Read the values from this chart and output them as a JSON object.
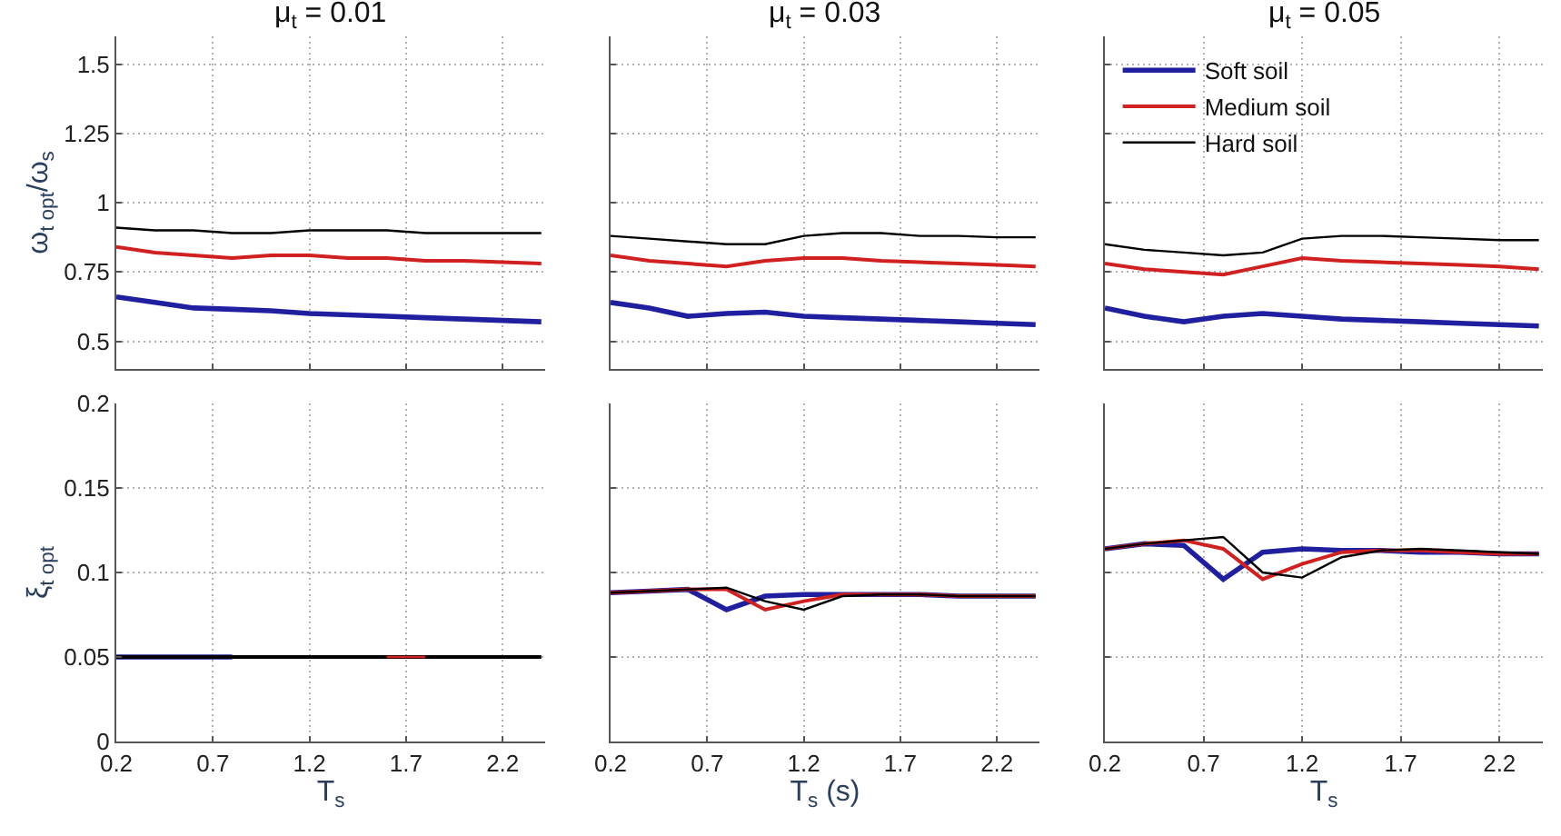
{
  "chart_data": [
    {
      "type": "line",
      "title": "μ$_{t}$ = 0.01",
      "ylabel": "ω$_{t opt}$/ω$_{s}$",
      "x": [
        0.2,
        0.4,
        0.6,
        0.8,
        1.0,
        1.2,
        1.4,
        1.6,
        1.8,
        2.0,
        2.2,
        2.4
      ],
      "xlim": [
        0.2,
        2.42
      ],
      "xticks": [
        0.2,
        0.7,
        1.2,
        1.7,
        2.2
      ],
      "ylim": [
        0.4,
        1.6
      ],
      "yticks": [
        0.5,
        0.75,
        1,
        1.25,
        1.5
      ],
      "tick_labels": "y",
      "grid": true,
      "legend": false,
      "series": [
        {
          "color": "#1f1fa0",
          "values": [
            0.66,
            0.64,
            0.62,
            0.615,
            0.61,
            0.6,
            0.595,
            0.59,
            0.585,
            0.58,
            0.575,
            0.57
          ]
        },
        {
          "color": "#d02020",
          "values": [
            0.84,
            0.82,
            0.81,
            0.8,
            0.81,
            0.81,
            0.8,
            0.8,
            0.79,
            0.79,
            0.785,
            0.78
          ]
        },
        {
          "color": "#000000",
          "values": [
            0.91,
            0.9,
            0.9,
            0.89,
            0.89,
            0.9,
            0.9,
            0.9,
            0.89,
            0.89,
            0.89,
            0.89
          ]
        }
      ]
    },
    {
      "type": "line",
      "title": "μ$_{t}$ = 0.03",
      "x": [
        0.2,
        0.4,
        0.6,
        0.8,
        1.0,
        1.2,
        1.4,
        1.6,
        1.8,
        2.0,
        2.2,
        2.4
      ],
      "xlim": [
        0.2,
        2.42
      ],
      "xticks": [
        0.2,
        0.7,
        1.2,
        1.7,
        2.2
      ],
      "ylim": [
        0.4,
        1.6
      ],
      "yticks": [
        0.5,
        0.75,
        1,
        1.25,
        1.5
      ],
      "tick_labels": false,
      "grid": true,
      "legend": false,
      "series": [
        {
          "color": "#1f1fa0",
          "values": [
            0.64,
            0.62,
            0.59,
            0.6,
            0.605,
            0.59,
            0.585,
            0.58,
            0.575,
            0.57,
            0.565,
            0.56
          ]
        },
        {
          "color": "#d02020",
          "values": [
            0.81,
            0.79,
            0.78,
            0.77,
            0.79,
            0.8,
            0.8,
            0.79,
            0.785,
            0.78,
            0.775,
            0.77
          ]
        },
        {
          "color": "#000000",
          "values": [
            0.88,
            0.87,
            0.86,
            0.85,
            0.85,
            0.88,
            0.89,
            0.89,
            0.88,
            0.88,
            0.875,
            0.875
          ]
        }
      ]
    },
    {
      "type": "line",
      "title": "μ$_{t}$ = 0.05",
      "x": [
        0.2,
        0.4,
        0.6,
        0.8,
        1.0,
        1.2,
        1.4,
        1.6,
        1.8,
        2.0,
        2.2,
        2.4
      ],
      "xlim": [
        0.2,
        2.42
      ],
      "xticks": [
        0.2,
        0.7,
        1.2,
        1.7,
        2.2
      ],
      "ylim": [
        0.4,
        1.6
      ],
      "yticks": [
        0.5,
        0.75,
        1,
        1.25,
        1.5
      ],
      "tick_labels": false,
      "grid": true,
      "legend": "top left",
      "series": [
        {
          "name": "Soft soil",
          "color": "#1f1fa0",
          "values": [
            0.62,
            0.59,
            0.57,
            0.59,
            0.6,
            0.59,
            0.58,
            0.575,
            0.57,
            0.565,
            0.56,
            0.555
          ]
        },
        {
          "name": "Medium soil",
          "color": "#d02020",
          "values": [
            0.78,
            0.76,
            0.75,
            0.74,
            0.77,
            0.8,
            0.79,
            0.785,
            0.78,
            0.775,
            0.77,
            0.76
          ]
        },
        {
          "name": "Hard soil",
          "color": "#000000",
          "values": [
            0.85,
            0.83,
            0.82,
            0.81,
            0.82,
            0.87,
            0.88,
            0.88,
            0.875,
            0.87,
            0.865,
            0.865
          ]
        }
      ]
    },
    {
      "type": "line",
      "ylabel": "ξ$_{t opt}$",
      "xlabel": "T$_{s}$",
      "x": [
        0.2,
        0.4,
        0.6,
        0.8,
        1.0,
        1.2,
        1.4,
        1.6,
        1.8,
        2.0,
        2.2,
        2.4
      ],
      "xlim": [
        0.2,
        2.42
      ],
      "xticks": [
        0.2,
        0.7,
        1.2,
        1.7,
        2.2
      ],
      "ylim": [
        0,
        0.2
      ],
      "yticks": [
        0,
        0.05,
        0.1,
        0.15,
        0.2
      ],
      "grid": true,
      "legend": false,
      "series": [
        {
          "color": "#1f1fa0",
          "values": [
            0.05,
            0.05,
            0.05,
            0.05,
            null,
            null,
            null,
            null,
            null,
            null,
            null,
            null
          ]
        },
        {
          "color": "#000000",
          "values": [
            0.05,
            0.05,
            0.05,
            0.05,
            0.05,
            0.05,
            0.05,
            0.05,
            0.05,
            0.05,
            0.05,
            0.05
          ]
        },
        {
          "color": "#d02020",
          "values": [
            null,
            null,
            null,
            null,
            null,
            null,
            null,
            0.05,
            0.05,
            null,
            null,
            null
          ]
        }
      ]
    },
    {
      "type": "line",
      "xlabel": "T$_{s}$ (s)",
      "x": [
        0.2,
        0.4,
        0.6,
        0.8,
        1.0,
        1.2,
        1.4,
        1.6,
        1.8,
        2.0,
        2.2,
        2.4
      ],
      "xlim": [
        0.2,
        2.42
      ],
      "xticks": [
        0.2,
        0.7,
        1.2,
        1.7,
        2.2
      ],
      "ylim": [
        0,
        0.2
      ],
      "yticks": [
        0,
        0.05,
        0.1,
        0.15,
        0.2
      ],
      "tick_labels": "x",
      "grid": true,
      "legend": false,
      "series": [
        {
          "color": "#1f1fa0",
          "values": [
            0.088,
            0.089,
            0.09,
            0.078,
            0.086,
            0.087,
            0.087,
            0.087,
            0.087,
            0.086,
            0.086,
            0.086
          ]
        },
        {
          "color": "#d02020",
          "values": [
            0.088,
            0.089,
            0.09,
            0.09,
            0.078,
            0.083,
            0.087,
            0.087,
            0.087,
            0.086,
            0.086,
            0.086
          ]
        },
        {
          "color": "#000000",
          "values": [
            0.088,
            0.089,
            0.09,
            0.091,
            0.083,
            0.078,
            0.086,
            0.087,
            0.087,
            0.086,
            0.086,
            0.086
          ]
        }
      ]
    },
    {
      "type": "line",
      "xlabel": "T$_{s}$",
      "x": [
        0.2,
        0.4,
        0.6,
        0.8,
        1.0,
        1.2,
        1.4,
        1.6,
        1.8,
        2.0,
        2.2,
        2.4
      ],
      "xlim": [
        0.2,
        2.42
      ],
      "xticks": [
        0.2,
        0.7,
        1.2,
        1.7,
        2.2
      ],
      "ylim": [
        0,
        0.2
      ],
      "yticks": [
        0,
        0.05,
        0.1,
        0.15,
        0.2
      ],
      "tick_labels": "x",
      "grid": true,
      "legend": false,
      "series": [
        {
          "color": "#1f1fa0",
          "values": [
            0.114,
            0.117,
            0.116,
            0.096,
            0.112,
            0.114,
            0.113,
            0.113,
            0.112,
            0.112,
            0.111,
            0.111
          ]
        },
        {
          "color": "#d02020",
          "values": [
            0.114,
            0.117,
            0.119,
            0.114,
            0.096,
            0.105,
            0.112,
            0.113,
            0.113,
            0.112,
            0.111,
            0.111
          ]
        },
        {
          "color": "#000000",
          "values": [
            0.114,
            0.117,
            0.119,
            0.121,
            0.1,
            0.097,
            0.109,
            0.113,
            0.114,
            0.113,
            0.112,
            0.111
          ]
        }
      ]
    }
  ]
}
